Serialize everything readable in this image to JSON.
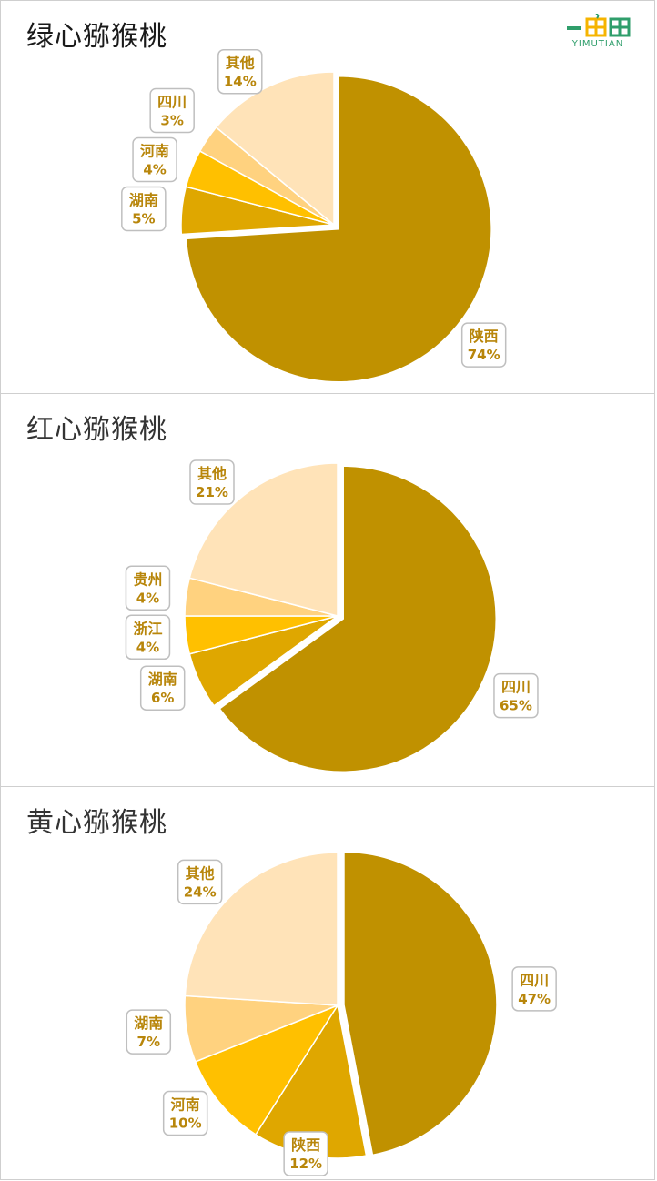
{
  "brand": {
    "logo_text": "YIMUTIAN",
    "logo_color": "#2f9e6b",
    "logo_accent": "#f6b400"
  },
  "label_color": "#b8860b",
  "chart_data": [
    {
      "type": "pie",
      "title": "绿心猕猴桃",
      "slices": [
        {
          "label": "陕西",
          "value": 74,
          "pct": "74%",
          "color": "#c09100",
          "exploded": true
        },
        {
          "label": "湖南",
          "value": 5,
          "pct": "5%",
          "color": "#dfa700"
        },
        {
          "label": "河南",
          "value": 4,
          "pct": "4%",
          "color": "#ffc000"
        },
        {
          "label": "四川",
          "value": 3,
          "pct": "3%",
          "color": "#ffd27f"
        },
        {
          "label": "其他",
          "value": 14,
          "pct": "14%",
          "color": "#ffe3b8"
        }
      ]
    },
    {
      "type": "pie",
      "title": "红心猕猴桃",
      "slices": [
        {
          "label": "四川",
          "value": 65,
          "pct": "65%",
          "color": "#c09100",
          "exploded": true
        },
        {
          "label": "湖南",
          "value": 6,
          "pct": "6%",
          "color": "#dfa700"
        },
        {
          "label": "浙江",
          "value": 4,
          "pct": "4%",
          "color": "#ffc000"
        },
        {
          "label": "贵州",
          "value": 4,
          "pct": "4%",
          "color": "#ffd27f"
        },
        {
          "label": "其他",
          "value": 21,
          "pct": "21%",
          "color": "#ffe3b8"
        }
      ]
    },
    {
      "type": "pie",
      "title": "黄心猕猴桃",
      "slices": [
        {
          "label": "四川",
          "value": 47,
          "pct": "47%",
          "color": "#c09100",
          "exploded": true
        },
        {
          "label": "陕西",
          "value": 12,
          "pct": "12%",
          "color": "#dfa700"
        },
        {
          "label": "河南",
          "value": 10,
          "pct": "10%",
          "color": "#ffc000"
        },
        {
          "label": "湖南",
          "value": 7,
          "pct": "7%",
          "color": "#ffd27f"
        },
        {
          "label": "其他",
          "value": 24,
          "pct": "24%",
          "color": "#ffe3b8"
        }
      ]
    }
  ]
}
